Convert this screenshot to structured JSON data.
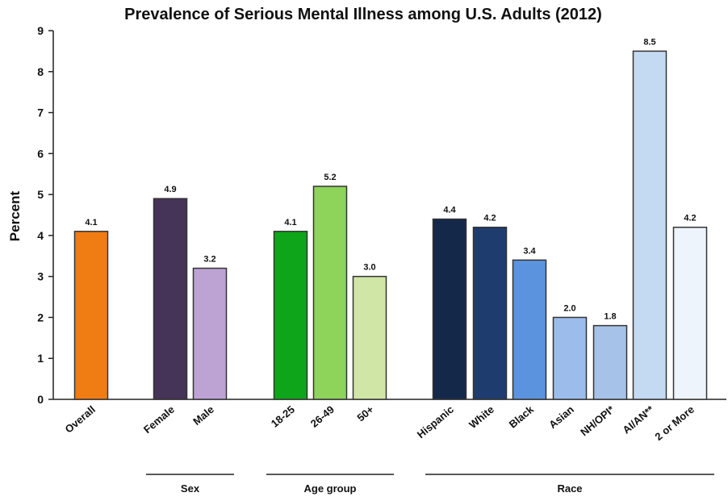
{
  "chart_data": {
    "type": "bar",
    "title": "Prevalence of Serious Mental Illness among U.S. Adults (2012)",
    "ylabel": "Percent",
    "xlabel": "",
    "ylim": [
      0,
      9
    ],
    "yticks": [
      "0",
      "1",
      "2",
      "3",
      "4",
      "5",
      "6",
      "7",
      "8",
      "9"
    ],
    "grid": false,
    "bars": [
      {
        "category": "Overall",
        "value": 4.1,
        "label": "4.1",
        "color": "#F07C14"
      },
      {
        "category": "Female",
        "value": 4.9,
        "label": "4.9",
        "color": "#463358"
      },
      {
        "category": "Male",
        "value": 3.2,
        "label": "3.2",
        "color": "#BCA3D3"
      },
      {
        "category": "18-25",
        "value": 4.1,
        "label": "4.1",
        "color": "#0FA51A"
      },
      {
        "category": "26-49",
        "value": 5.2,
        "label": "5.2",
        "color": "#8ED35A"
      },
      {
        "category": "50+",
        "value": 3.0,
        "label": "3.0",
        "color": "#CFE6A6"
      },
      {
        "category": "Hispanic",
        "value": 4.4,
        "label": "4.4",
        "color": "#14284A"
      },
      {
        "category": "White",
        "value": 4.2,
        "label": "4.2",
        "color": "#1E3C6E"
      },
      {
        "category": "Black",
        "value": 3.4,
        "label": "3.4",
        "color": "#5B93DE"
      },
      {
        "category": "Asian",
        "value": 2.0,
        "label": "2.0",
        "color": "#9CBDEC"
      },
      {
        "category": "NH/OPI*",
        "value": 1.8,
        "label": "1.8",
        "color": "#A7C2E8"
      },
      {
        "category": "AI/AN**",
        "value": 8.5,
        "label": "8.5",
        "color": "#C4D9F2"
      },
      {
        "category": "2 or More",
        "value": 4.2,
        "label": "4.2",
        "color": "#EEF4FC"
      }
    ],
    "groups": [
      {
        "label": "Sex",
        "from": "Female",
        "to": "Male"
      },
      {
        "label": "Age group",
        "from": "18-25",
        "to": "50+"
      },
      {
        "label": "Race",
        "from": "Hispanic",
        "to": "2 or More"
      }
    ]
  }
}
